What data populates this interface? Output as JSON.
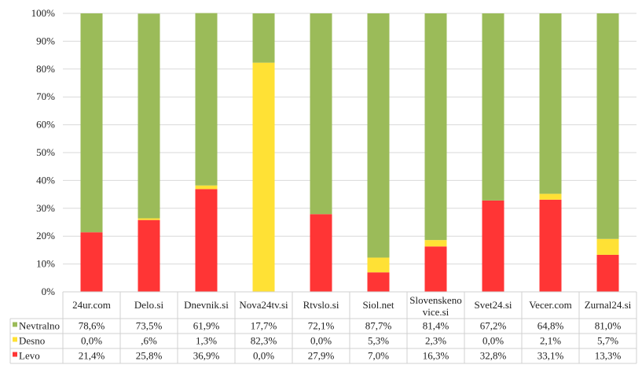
{
  "chart_data": {
    "type": "bar",
    "stacked": true,
    "percent": true,
    "categories": [
      [
        "24ur.com"
      ],
      [
        "Delo.si"
      ],
      [
        "Dnevnik.si"
      ],
      [
        "Nova24tv.si"
      ],
      [
        "Rtvslo.si"
      ],
      [
        "Siol.net"
      ],
      [
        "Slovenskeno",
        "vice.si"
      ],
      [
        "Svet24.si"
      ],
      [
        "Vecer.com"
      ],
      [
        "Zurnal24.si"
      ]
    ],
    "yticks": [
      "0%",
      "10%",
      "20%",
      "30%",
      "40%",
      "50%",
      "60%",
      "70%",
      "80%",
      "90%",
      "100%"
    ],
    "ylim": [
      0,
      100
    ],
    "grid": true,
    "legend_placement": "data-table-left",
    "series": [
      {
        "name": "Levo",
        "color": "#FF3535",
        "values": [
          21.4,
          25.8,
          36.9,
          0.0,
          27.9,
          7.0,
          16.3,
          32.8,
          33.1,
          13.3
        ],
        "labels": [
          "21,4%",
          "25,8%",
          "36,9%",
          "0,0%",
          "27,9%",
          "7,0%",
          "16,3%",
          "32,8%",
          "33,1%",
          "13,3%"
        ]
      },
      {
        "name": "Desno",
        "color": "#FFE135",
        "values": [
          0.0,
          0.6,
          1.3,
          82.3,
          0.0,
          5.3,
          2.3,
          0.0,
          2.1,
          5.7
        ],
        "labels": [
          "0,0%",
          ",6%",
          "1,3%",
          "82,3%",
          "0,0%",
          "5,3%",
          "2,3%",
          "0,0%",
          "2,1%",
          "5,7%"
        ]
      },
      {
        "name": "Nevtralno",
        "color": "#9BBB59",
        "values": [
          78.6,
          73.5,
          61.9,
          17.7,
          72.1,
          87.7,
          81.4,
          67.2,
          64.8,
          81.0
        ],
        "labels": [
          "78,6%",
          "73,5%",
          "61,9%",
          "17,7%",
          "72,1%",
          "87,7%",
          "81,4%",
          "67,2%",
          "64,8%",
          "81,0%"
        ]
      }
    ],
    "table_row_order": [
      "Nevtralno",
      "Desno",
      "Levo"
    ]
  }
}
